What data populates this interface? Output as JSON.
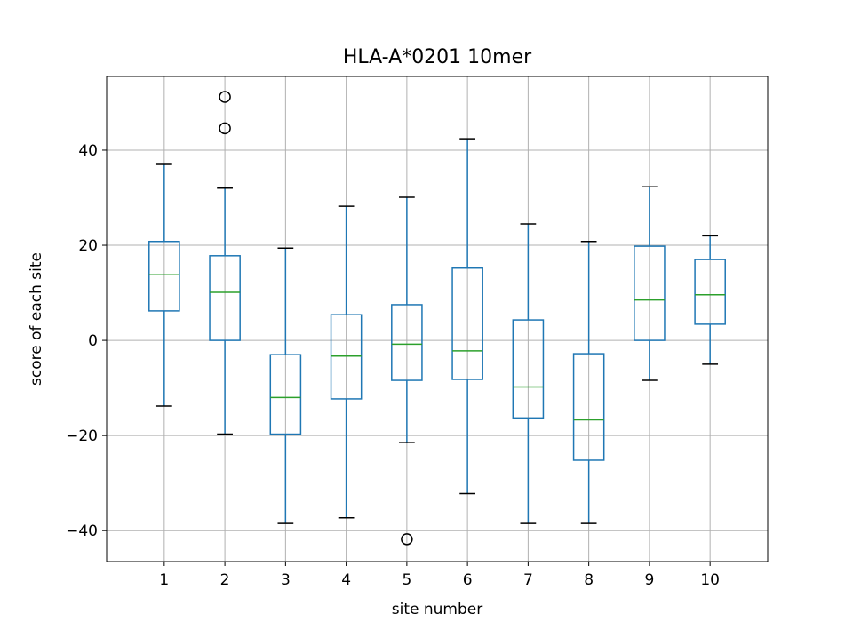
{
  "chart_data": {
    "type": "box",
    "title": "HLA-A*0201 10mer",
    "xlabel": "site number",
    "ylabel": "score of each site",
    "ylim": [
      -46.5,
      55.5
    ],
    "yticks": [
      -40,
      -20,
      0,
      20,
      40
    ],
    "grid": true,
    "colors": {
      "box": "#1f77b4",
      "median": "#2ca02c",
      "cap": "#000000",
      "grid": "#b0b0b0"
    },
    "categories": [
      "1",
      "2",
      "3",
      "4",
      "5",
      "6",
      "7",
      "8",
      "9",
      "10"
    ],
    "boxes": [
      {
        "site": "1",
        "whisker_low": -13.8,
        "q1": 6.2,
        "median": 13.8,
        "q3": 20.8,
        "whisker_high": 37.0,
        "outliers": []
      },
      {
        "site": "2",
        "whisker_low": -19.7,
        "q1": 0.0,
        "median": 10.1,
        "q3": 17.8,
        "whisker_high": 32.0,
        "outliers": [
          44.6,
          51.2
        ]
      },
      {
        "site": "3",
        "whisker_low": -38.5,
        "q1": -19.7,
        "median": -12.0,
        "q3": -3.0,
        "whisker_high": 19.4,
        "outliers": []
      },
      {
        "site": "4",
        "whisker_low": -37.3,
        "q1": -12.3,
        "median": -3.3,
        "q3": 5.4,
        "whisker_high": 28.2,
        "outliers": []
      },
      {
        "site": "5",
        "whisker_low": -21.5,
        "q1": -8.4,
        "median": -0.8,
        "q3": 7.5,
        "whisker_high": 30.1,
        "outliers": [
          -41.8
        ]
      },
      {
        "site": "6",
        "whisker_low": -32.2,
        "q1": -8.2,
        "median": -2.2,
        "q3": 15.2,
        "whisker_high": 42.4,
        "outliers": []
      },
      {
        "site": "7",
        "whisker_low": -38.5,
        "q1": -16.3,
        "median": -9.8,
        "q3": 4.3,
        "whisker_high": 24.5,
        "outliers": []
      },
      {
        "site": "8",
        "whisker_low": -38.5,
        "q1": -25.2,
        "median": -16.7,
        "q3": -2.8,
        "whisker_high": 20.8,
        "outliers": []
      },
      {
        "site": "9",
        "whisker_low": -8.4,
        "q1": 0.0,
        "median": 8.5,
        "q3": 19.8,
        "whisker_high": 32.3,
        "outliers": []
      },
      {
        "site": "10",
        "whisker_low": -5.0,
        "q1": 3.4,
        "median": 9.6,
        "q3": 17.0,
        "whisker_high": 22.0,
        "outliers": []
      }
    ]
  }
}
